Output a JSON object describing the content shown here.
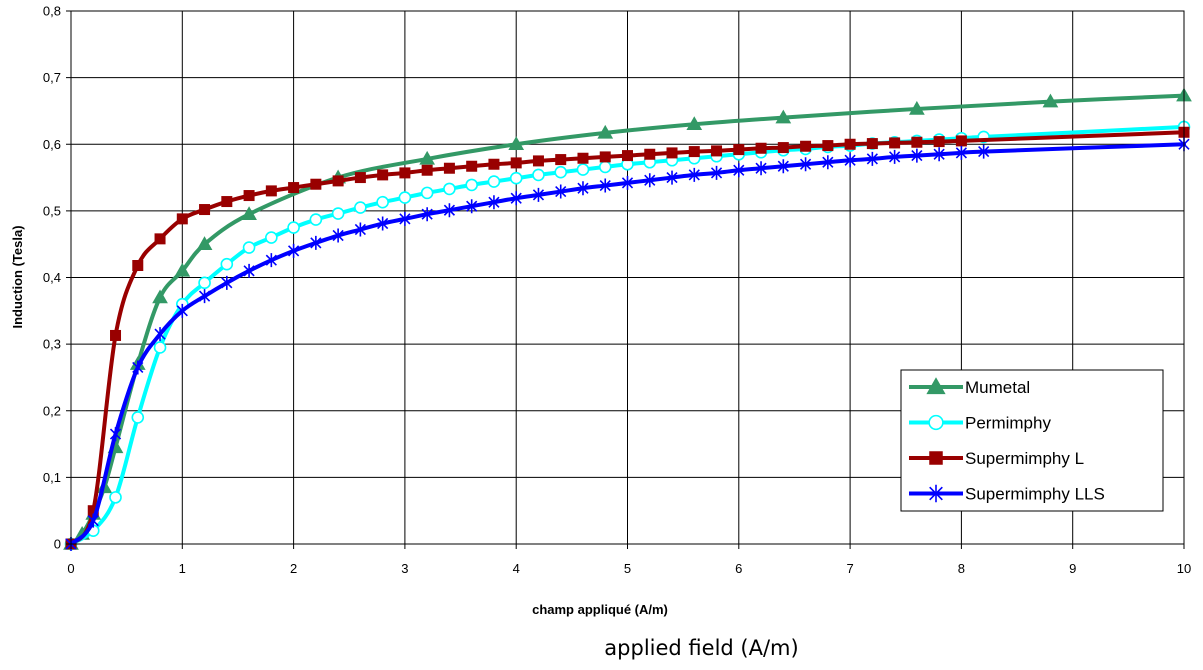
{
  "caption": "applied field (A/m)",
  "chart_data": {
    "type": "line",
    "xlabel": "champ appliqué (A/m)",
    "ylabel": "Induction (Tesla)",
    "xlim": [
      0,
      10
    ],
    "ylim": [
      0,
      0.8
    ],
    "x_ticks": [
      "0",
      "1",
      "2",
      "3",
      "4",
      "5",
      "6",
      "7",
      "8",
      "9",
      "10"
    ],
    "y_ticks": [
      "0",
      "0,1",
      "0,2",
      "0,3",
      "0,4",
      "0,5",
      "0,6",
      "0,7",
      "0,8"
    ],
    "grid": true,
    "legend_position": "bottom-right",
    "series": [
      {
        "name": "Mumetal",
        "color": "#339966",
        "marker": "triangle",
        "x": [
          0,
          0.1,
          0.2,
          0.3,
          0.4,
          0.6,
          0.8,
          1.0,
          1.2,
          1.6,
          2.4,
          3.2,
          4.0,
          4.8,
          5.6,
          6.4,
          7.6,
          8.8,
          10.0
        ],
        "y": [
          0,
          0.015,
          0.045,
          0.085,
          0.145,
          0.27,
          0.37,
          0.41,
          0.45,
          0.495,
          0.55,
          0.578,
          0.6,
          0.617,
          0.63,
          0.64,
          0.653,
          0.664,
          0.673
        ]
      },
      {
        "name": "Permimphy",
        "color": "#00FFFF",
        "marker": "circle",
        "x": [
          0,
          0.2,
          0.4,
          0.6,
          0.8,
          1.0,
          1.2,
          1.4,
          1.6,
          1.8,
          2.0,
          2.2,
          2.4,
          2.6,
          2.8,
          3.0,
          3.2,
          3.4,
          3.6,
          3.8,
          4.0,
          4.2,
          4.4,
          4.6,
          4.8,
          5.0,
          5.2,
          5.4,
          5.6,
          5.8,
          6.0,
          6.2,
          6.4,
          6.6,
          6.8,
          7.0,
          7.2,
          7.4,
          7.6,
          7.8,
          8.0,
          8.2,
          10.0
        ],
        "y": [
          0,
          0.02,
          0.07,
          0.19,
          0.295,
          0.36,
          0.392,
          0.42,
          0.445,
          0.46,
          0.475,
          0.487,
          0.496,
          0.505,
          0.513,
          0.52,
          0.527,
          0.533,
          0.539,
          0.544,
          0.549,
          0.554,
          0.558,
          0.562,
          0.566,
          0.57,
          0.573,
          0.576,
          0.579,
          0.582,
          0.585,
          0.588,
          0.591,
          0.593,
          0.596,
          0.598,
          0.601,
          0.603,
          0.605,
          0.607,
          0.609,
          0.611,
          0.626
        ]
      },
      {
        "name": "Supermimphy L",
        "color": "#990000",
        "marker": "square",
        "x": [
          0,
          0.2,
          0.4,
          0.6,
          0.8,
          1.0,
          1.2,
          1.4,
          1.6,
          1.8,
          2.0,
          2.2,
          2.4,
          2.6,
          2.8,
          3.0,
          3.2,
          3.4,
          3.6,
          3.8,
          4.0,
          4.2,
          4.4,
          4.6,
          4.8,
          5.0,
          5.2,
          5.4,
          5.6,
          5.8,
          6.0,
          6.2,
          6.4,
          6.6,
          6.8,
          7.0,
          7.2,
          7.4,
          7.6,
          7.8,
          8.0,
          10.0
        ],
        "y": [
          0,
          0.05,
          0.313,
          0.418,
          0.458,
          0.488,
          0.502,
          0.514,
          0.523,
          0.53,
          0.535,
          0.54,
          0.545,
          0.55,
          0.554,
          0.557,
          0.561,
          0.564,
          0.567,
          0.57,
          0.572,
          0.575,
          0.577,
          0.579,
          0.581,
          0.583,
          0.585,
          0.587,
          0.589,
          0.59,
          0.592,
          0.594,
          0.595,
          0.597,
          0.598,
          0.6,
          0.601,
          0.602,
          0.603,
          0.604,
          0.605,
          0.618
        ]
      },
      {
        "name": "Supermimphy LLS",
        "color": "#0000FF",
        "marker": "star",
        "x": [
          0,
          0.2,
          0.4,
          0.6,
          0.8,
          1.0,
          1.2,
          1.4,
          1.6,
          1.8,
          2.0,
          2.2,
          2.4,
          2.6,
          2.8,
          3.0,
          3.2,
          3.4,
          3.6,
          3.8,
          4.0,
          4.2,
          4.4,
          4.6,
          4.8,
          5.0,
          5.2,
          5.4,
          5.6,
          5.8,
          6.0,
          6.2,
          6.4,
          6.6,
          6.8,
          7.0,
          7.2,
          7.4,
          7.6,
          7.8,
          8.0,
          8.2,
          10.0
        ],
        "y": [
          0,
          0.035,
          0.165,
          0.265,
          0.315,
          0.35,
          0.372,
          0.392,
          0.41,
          0.426,
          0.44,
          0.452,
          0.463,
          0.472,
          0.481,
          0.488,
          0.495,
          0.501,
          0.507,
          0.513,
          0.519,
          0.524,
          0.529,
          0.534,
          0.538,
          0.542,
          0.546,
          0.55,
          0.554,
          0.557,
          0.561,
          0.564,
          0.567,
          0.57,
          0.573,
          0.576,
          0.578,
          0.581,
          0.583,
          0.585,
          0.587,
          0.589,
          0.6
        ]
      }
    ]
  }
}
